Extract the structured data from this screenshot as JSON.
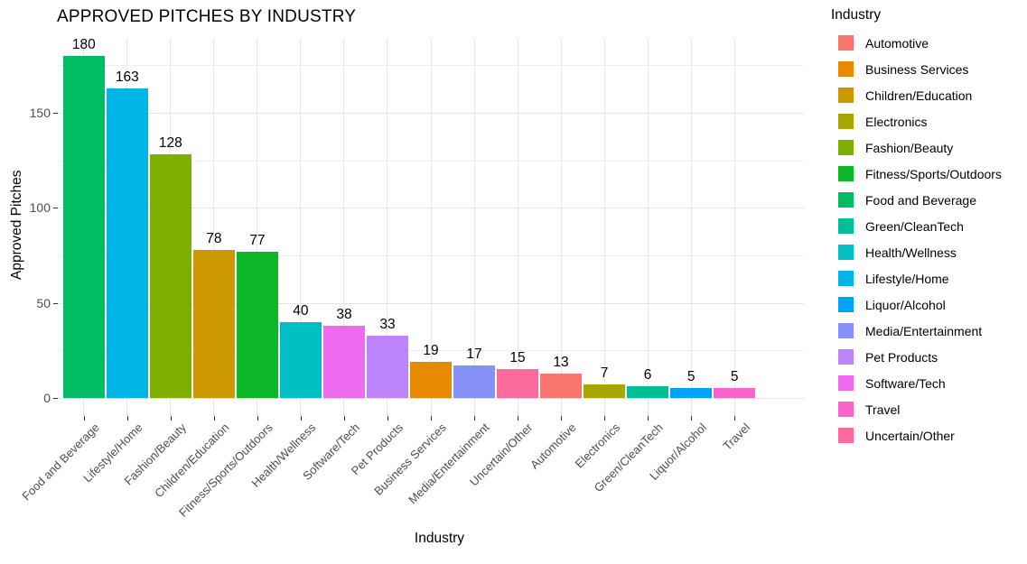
{
  "chart_data": {
    "type": "bar",
    "title": "APPROVED PITCHES BY INDUSTRY",
    "xlabel": "Industry",
    "ylabel": "Approved Pitches",
    "legend_title": "Industry",
    "legend_position": "right",
    "grid": true,
    "ylim": [
      0,
      189
    ],
    "yticks": [
      0,
      50,
      100,
      150
    ],
    "yticks_minor": [
      25,
      75,
      125,
      175
    ],
    "bar_value_labels_shown": true,
    "categories": [
      "Food and Beverage",
      "Lifestyle/Home",
      "Fashion/Beauty",
      "Children/Education",
      "Fitness/Sports/Outdoors",
      "Health/Wellness",
      "Software/Tech",
      "Pet Products",
      "Business Services",
      "Media/Entertainment",
      "Uncertain/Other",
      "Automotive",
      "Electronics",
      "Green/CleanTech",
      "Liquor/Alcohol",
      "Travel"
    ],
    "values": [
      180,
      163,
      128,
      78,
      77,
      40,
      38,
      33,
      19,
      17,
      15,
      13,
      7,
      6,
      5,
      5
    ],
    "bars": [
      {
        "label": "Food and Beverage",
        "value": 180,
        "color": "#00BC64"
      },
      {
        "label": "Lifestyle/Home",
        "value": 163,
        "color": "#00B4E6"
      },
      {
        "label": "Fashion/Beauty",
        "value": 128,
        "color": "#7EAF00"
      },
      {
        "label": "Children/Education",
        "value": 78,
        "color": "#CC9800"
      },
      {
        "label": "Fitness/Sports/Outdoors",
        "value": 77,
        "color": "#0CB827"
      },
      {
        "label": "Health/Wellness",
        "value": 40,
        "color": "#00BFC4"
      },
      {
        "label": "Software/Tech",
        "value": 38,
        "color": "#ED6BEE"
      },
      {
        "label": "Pet Products",
        "value": 33,
        "color": "#BC84F8"
      },
      {
        "label": "Business Services",
        "value": 19,
        "color": "#E88A00"
      },
      {
        "label": "Media/Entertainment",
        "value": 17,
        "color": "#8691F8"
      },
      {
        "label": "Uncertain/Other",
        "value": 15,
        "color": "#FD6A9E"
      },
      {
        "label": "Automotive",
        "value": 13,
        "color": "#F8766D"
      },
      {
        "label": "Electronics",
        "value": 7,
        "color": "#A8A400"
      },
      {
        "label": "Green/CleanTech",
        "value": 6,
        "color": "#00BE96"
      },
      {
        "label": "Liquor/Alcohol",
        "value": 5,
        "color": "#00A3F7"
      },
      {
        "label": "Travel",
        "value": 5,
        "color": "#FB63CC"
      }
    ],
    "legend_items": [
      {
        "label": "Automotive",
        "color": "#F8766D"
      },
      {
        "label": "Business Services",
        "color": "#E88A00"
      },
      {
        "label": "Children/Education",
        "color": "#CC9800"
      },
      {
        "label": "Electronics",
        "color": "#A8A400"
      },
      {
        "label": "Fashion/Beauty",
        "color": "#7EAF00"
      },
      {
        "label": "Fitness/Sports/Outdoors",
        "color": "#0CB827"
      },
      {
        "label": "Food and Beverage",
        "color": "#00BC64"
      },
      {
        "label": "Green/CleanTech",
        "color": "#00BE96"
      },
      {
        "label": "Health/Wellness",
        "color": "#00BFC4"
      },
      {
        "label": "Lifestyle/Home",
        "color": "#00B4E6"
      },
      {
        "label": "Liquor/Alcohol",
        "color": "#00A3F7"
      },
      {
        "label": "Media/Entertainment",
        "color": "#8691F8"
      },
      {
        "label": "Pet Products",
        "color": "#BC84F8"
      },
      {
        "label": "Software/Tech",
        "color": "#ED6BEE"
      },
      {
        "label": "Travel",
        "color": "#FB63CC"
      },
      {
        "label": "Uncertain/Other",
        "color": "#FD6A9E"
      }
    ]
  },
  "colors": {
    "background": "#FFFFFF",
    "grid_major": "#E3E3E3",
    "grid_minor": "#EFEFEF",
    "tick_mark": "#333333",
    "axis_text": "#4D4D4D",
    "text": "#000000"
  }
}
